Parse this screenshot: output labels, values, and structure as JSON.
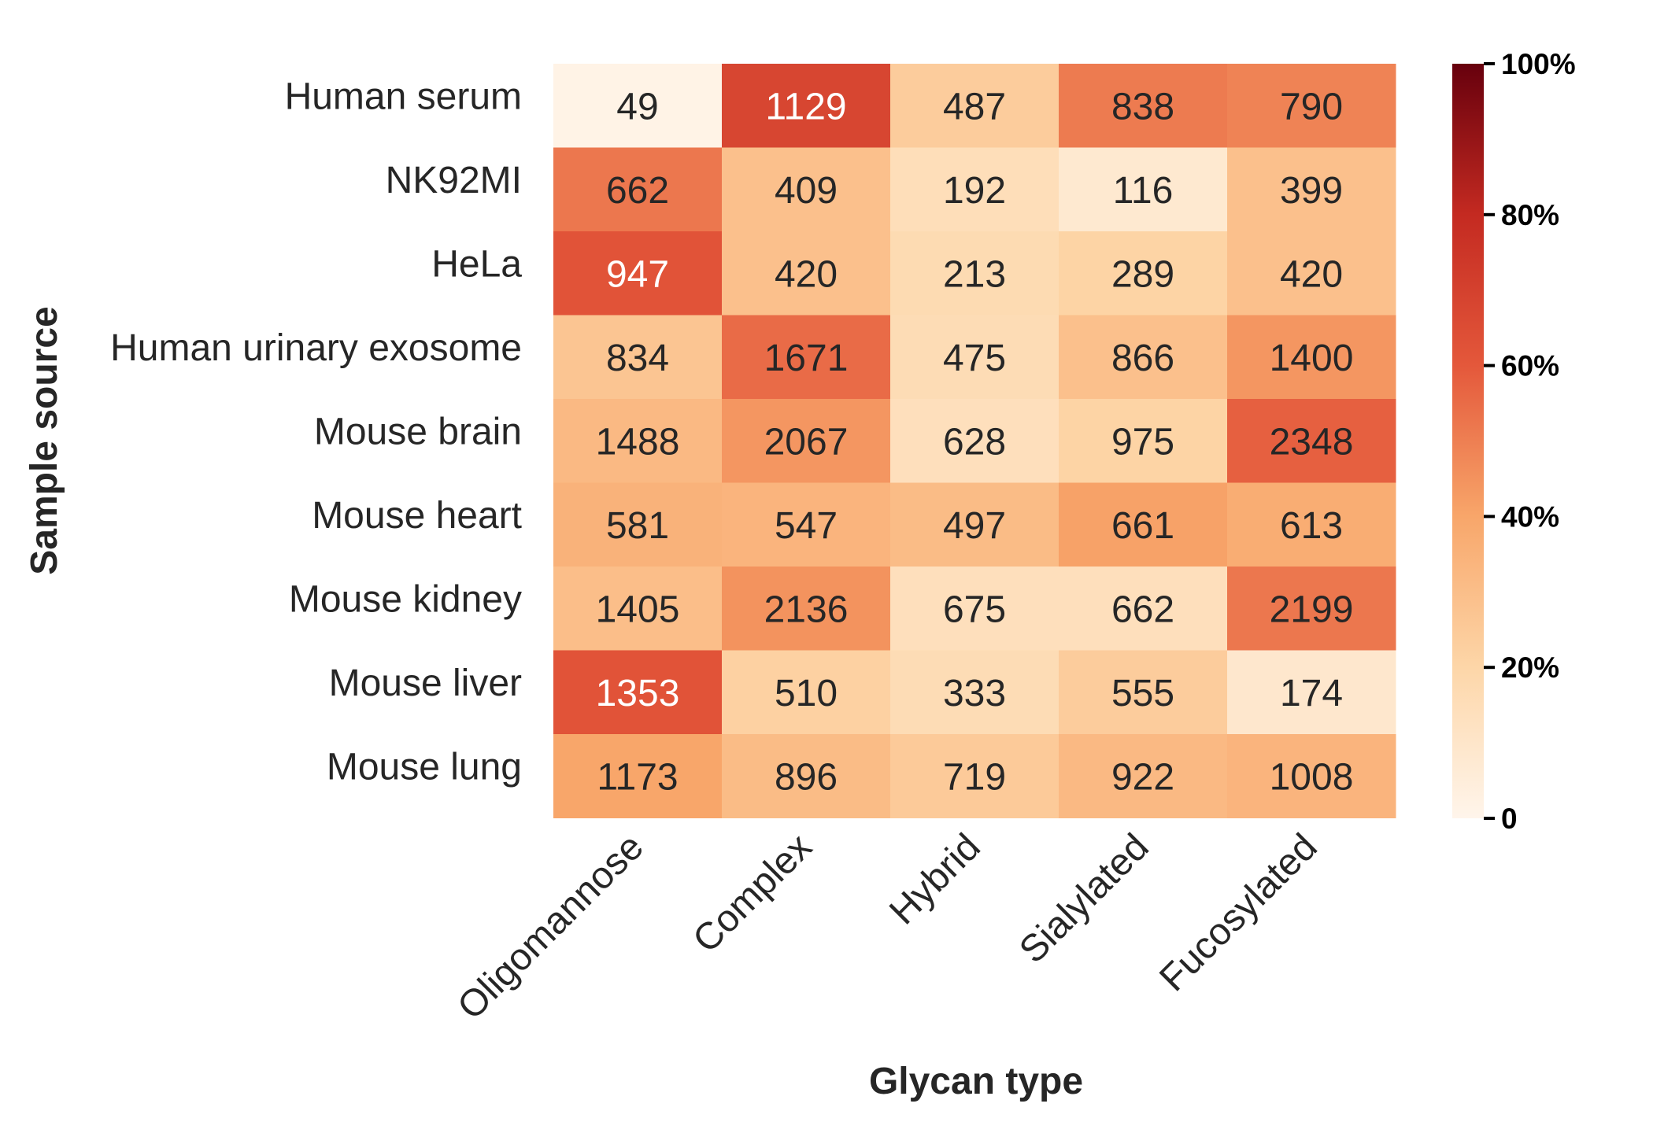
{
  "chart_data": {
    "type": "heatmap",
    "xlabel": "Glycan type",
    "ylabel": "Sample source",
    "columns": [
      "Oligomannose",
      "Complex",
      "Hybrid",
      "Sialylated",
      "Fucosylated"
    ],
    "rows": [
      "Human serum",
      "NK92MI",
      "HeLa",
      "Human urinary exosome",
      "Mouse brain",
      "Mouse heart",
      "Mouse kidney",
      "Mouse liver",
      "Mouse lung"
    ],
    "values": [
      [
        49,
        1129,
        487,
        838,
        790
      ],
      [
        662,
        409,
        192,
        116,
        399
      ],
      [
        947,
        420,
        213,
        289,
        420
      ],
      [
        834,
        1671,
        475,
        866,
        1400
      ],
      [
        1488,
        2067,
        628,
        975,
        2348
      ],
      [
        581,
        547,
        497,
        661,
        613
      ],
      [
        1405,
        2136,
        675,
        662,
        2199
      ],
      [
        1353,
        510,
        333,
        555,
        174
      ],
      [
        1173,
        896,
        719,
        922,
        1008
      ]
    ],
    "percent": [
      [
        1.5,
        68,
        24,
        51,
        49
      ],
      [
        52,
        29,
        15,
        8,
        29
      ],
      [
        62,
        29,
        17,
        21,
        29
      ],
      [
        27,
        55,
        16,
        29,
        44
      ],
      [
        32,
        44,
        14,
        21,
        58
      ],
      [
        35,
        34,
        31,
        41,
        37
      ],
      [
        30,
        45,
        14,
        14,
        52
      ],
      [
        62,
        22,
        16,
        24,
        9
      ],
      [
        40,
        31,
        25,
        32,
        34
      ]
    ],
    "colorbar": {
      "range": [
        0,
        100
      ],
      "ticks": [
        0,
        20,
        40,
        60,
        80,
        100
      ],
      "tick_labels": [
        "0",
        "20%",
        "40%",
        "60%",
        "80%",
        "100%"
      ],
      "colors": [
        "#fff5eb",
        "#fdd0a2",
        "#fdae6b",
        "#f16913",
        "#d94801",
        "#a50f15",
        "#67000d"
      ],
      "colormap": "OrRd"
    },
    "annotation_dark_color": "#262626",
    "annotation_light_color": "#ffffff",
    "legend": "right"
  }
}
